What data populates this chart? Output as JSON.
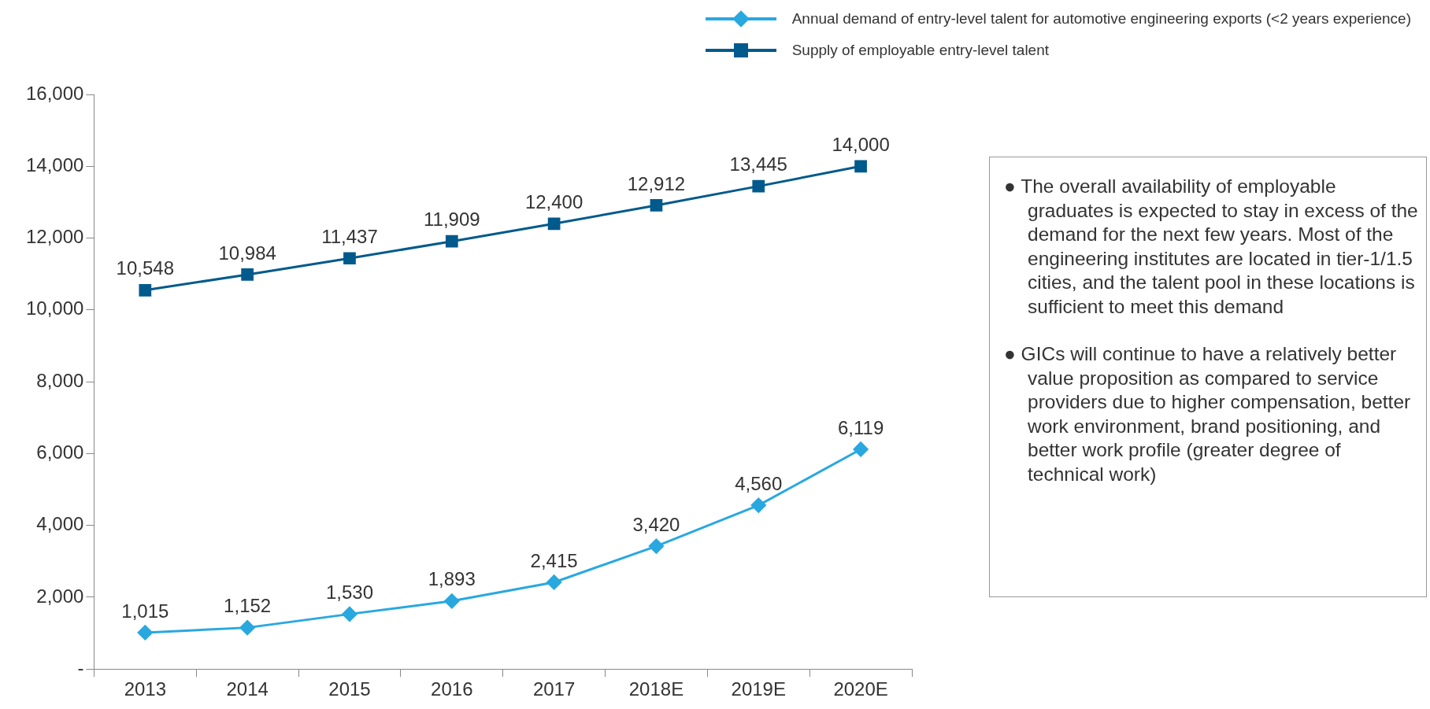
{
  "chart_data": {
    "type": "line",
    "categories": [
      "2013",
      "2014",
      "2015",
      "2016",
      "2017",
      "2018E",
      "2019E",
      "2020E"
    ],
    "series": [
      {
        "name": "Annual demand of entry-level talent for automotive engineering exports (<2 years experience)",
        "color": "#29a8e0",
        "marker": "diamond",
        "values": [
          1015,
          1152,
          1530,
          1893,
          2415,
          3420,
          4560,
          6119
        ],
        "value_labels": [
          "1,015",
          "1,152",
          "1,530",
          "1,893",
          "2,415",
          "3,420",
          "4,560",
          "6,119"
        ]
      },
      {
        "name": "Supply of employable entry-level talent",
        "color": "#005a8c",
        "marker": "square",
        "values": [
          10548,
          10984,
          11437,
          11909,
          12400,
          12912,
          13445,
          14000
        ],
        "value_labels": [
          "10,548",
          "10,984",
          "11,437",
          "11,909",
          "12,400",
          "12,912",
          "13,445",
          "14,000"
        ]
      }
    ],
    "ylim": [
      0,
      16000
    ],
    "yticks": [
      {
        "value": 0,
        "label": "-"
      },
      {
        "value": 2000,
        "label": "2,000"
      },
      {
        "value": 4000,
        "label": "4,000"
      },
      {
        "value": 6000,
        "label": "6,000"
      },
      {
        "value": 8000,
        "label": "8,000"
      },
      {
        "value": 10000,
        "label": "10,000"
      },
      {
        "value": 12000,
        "label": "12,000"
      },
      {
        "value": 14000,
        "label": "14,000"
      },
      {
        "value": 16000,
        "label": "16,000"
      }
    ],
    "grid": false,
    "legend": "top right",
    "annotations": [
      "● The overall availability of employable graduates is expected to stay in excess of the demand for the next few years. Most of the engineering institutes are located in tier-1/1.5 cities, and the talent pool in these locations is sufficient to meet this demand",
      "● GICs will continue to have a relatively better value proposition as compared to service providers due to higher compensation, better work environment, brand positioning, and better work profile (greater degree of technical work)"
    ]
  }
}
